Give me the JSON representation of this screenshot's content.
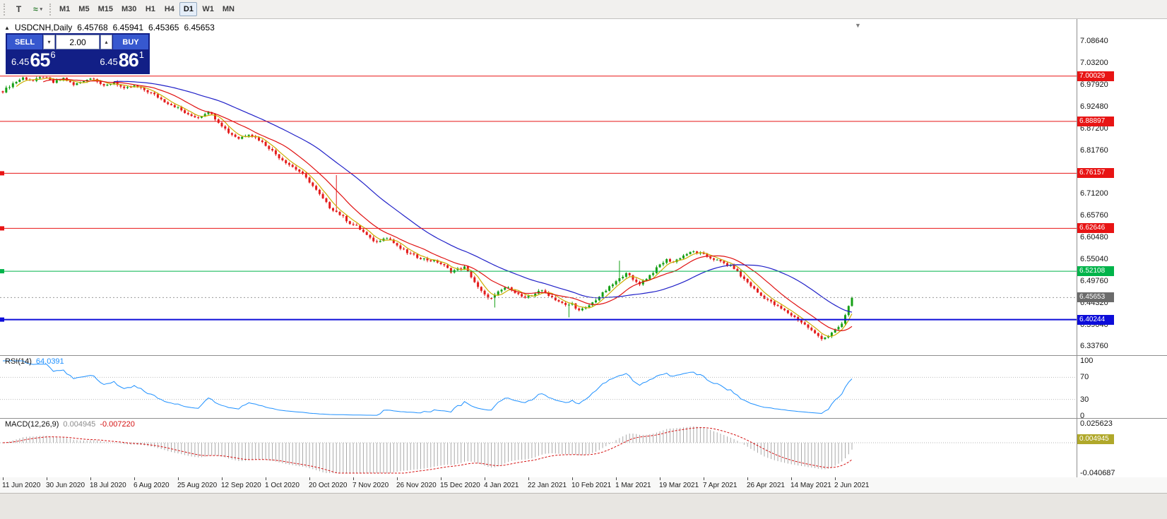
{
  "icons": {
    "shift_marker": "▼",
    "one_click_toggle": "▲",
    "spin_up": "▴",
    "spin_down": "▾"
  },
  "toolbar": {
    "icon_buttons": [
      {
        "name": "text-tool",
        "glyph": "T",
        "color": "#3c3c3c"
      },
      {
        "name": "draw-tool-dropdown",
        "glyph": "≈",
        "caret": "▾",
        "color": "#2e7d32"
      }
    ],
    "timeframes": [
      {
        "label": "M1",
        "active": false
      },
      {
        "label": "M5",
        "active": false
      },
      {
        "label": "M15",
        "active": false
      },
      {
        "label": "M30",
        "active": false
      },
      {
        "label": "H1",
        "active": false
      },
      {
        "label": "H4",
        "active": false
      },
      {
        "label": "D1",
        "active": true
      },
      {
        "label": "W1",
        "active": false
      },
      {
        "label": "MN",
        "active": false
      }
    ]
  },
  "header": {
    "symbol_period": "USDCNH,Daily",
    "open": "6.45768",
    "high": "6.45941",
    "low": "6.45365",
    "close": "6.45653"
  },
  "one_click": {
    "sell_label": "SELL",
    "buy_label": "BUY",
    "volume": "2.00",
    "sell_price": {
      "base": "6.45",
      "big": "65",
      "sup": "6"
    },
    "buy_price": {
      "base": "6.45",
      "big": "86",
      "sup": "1"
    },
    "panel_bg": "#121f86",
    "button_bg": "#3758cf"
  },
  "indicators": {
    "rsi": {
      "name": "RSI(14)",
      "value": "64.0391",
      "levels": [
        100,
        70,
        30,
        0
      ],
      "line_color": "#1e90ff",
      "level_color": "#bcbcbc"
    },
    "macd": {
      "name": "MACD(12,26,9)",
      "value_main": "0.004945",
      "value_signal": "-0.007220",
      "scale_top": "0.025623",
      "scale_bottom": "-0.040687",
      "current_tag": "0.004945",
      "histogram_color": "#a9a9a9",
      "signal_color": "#d41111",
      "tag_bg": "#b0a82a"
    }
  },
  "price_axis": {
    "labels": [
      "7.08640",
      "7.03200",
      "6.97920",
      "6.92480",
      "6.87200",
      "6.81760",
      "6.76320",
      "6.71200",
      "6.65760",
      "6.60480",
      "6.55040",
      "6.49760",
      "6.44320",
      "6.39040",
      "6.33760"
    ],
    "current": {
      "label": "6.45653",
      "price": 6.45653,
      "bg": "#6b6b6b"
    }
  },
  "chart_data": {
    "type": "candlestick",
    "symbol": "USDCNH",
    "period": "Daily",
    "ohlc": [
      6.45768,
      6.45941,
      6.45365,
      6.45653
    ],
    "ylim": [
      6.3376,
      7.0864
    ],
    "num_candles": 253,
    "jitter": 0.003,
    "wick": 0.0045,
    "up_color": "#16a016",
    "down_color": "#e41c1c",
    "rsi_period": 14,
    "macd_periods": [
      12,
      26,
      9
    ],
    "bid_line": {
      "price": 6.45653,
      "color": "#999999"
    },
    "ma_lines": [
      {
        "period": 5,
        "color": "#ccae00"
      },
      {
        "period": 13,
        "color": "#e01010"
      },
      {
        "period": 34,
        "color": "#2020c8"
      }
    ],
    "hlines": [
      {
        "price": 7.00029,
        "label": "7.00029",
        "color": "#e81414",
        "width": 1,
        "handle": false
      },
      {
        "price": 6.88897,
        "label": "6.88897",
        "color": "#e81414",
        "width": 1,
        "handle": false
      },
      {
        "price": 6.76157,
        "label": "6.76157",
        "color": "#e81414",
        "width": 1,
        "handle": true
      },
      {
        "price": 6.62646,
        "label": "6.62646",
        "color": "#e81414",
        "width": 1,
        "handle": true
      },
      {
        "price": 6.52108,
        "label": "6.52108",
        "color": "#00b44a",
        "width": 1,
        "handle": true
      },
      {
        "price": 6.40244,
        "label": "6.40244",
        "color": "#0d0dd9",
        "width": 2,
        "handle": true
      }
    ],
    "anchors": [
      [
        0,
        6.963
      ],
      [
        3,
        6.982
      ],
      [
        6,
        6.996
      ],
      [
        9,
        6.988
      ],
      [
        12,
        6.999
      ],
      [
        15,
        6.984
      ],
      [
        18,
        6.995
      ],
      [
        21,
        6.978
      ],
      [
        24,
        6.99
      ],
      [
        27,
        6.996
      ],
      [
        30,
        6.974
      ],
      [
        33,
        6.986
      ],
      [
        36,
        6.968
      ],
      [
        39,
        6.976
      ],
      [
        42,
        6.966
      ],
      [
        45,
        6.954
      ],
      [
        48,
        6.938
      ],
      [
        52,
        6.922
      ],
      [
        55,
        6.904
      ],
      [
        58,
        6.899
      ],
      [
        61,
        6.914
      ],
      [
        64,
        6.888
      ],
      [
        67,
        6.862
      ],
      [
        70,
        6.847
      ],
      [
        73,
        6.859
      ],
      [
        76,
        6.844
      ],
      [
        79,
        6.824
      ],
      [
        82,
        6.801
      ],
      [
        85,
        6.783
      ],
      [
        88,
        6.766
      ],
      [
        91,
        6.741
      ],
      [
        94,
        6.709
      ],
      [
        97,
        6.678
      ],
      [
        99,
        6.667
      ],
      [
        101,
        6.654
      ],
      [
        103,
        6.639
      ],
      [
        105,
        6.631
      ],
      [
        107,
        6.617
      ],
      [
        109,
        6.601
      ],
      [
        111,
        6.592
      ],
      [
        113,
        6.604
      ],
      [
        115,
        6.599
      ],
      [
        117,
        6.582
      ],
      [
        120,
        6.567
      ],
      [
        123,
        6.556
      ],
      [
        126,
        6.549
      ],
      [
        129,
        6.544
      ],
      [
        131,
        6.534
      ],
      [
        133,
        6.521
      ],
      [
        135,
        6.526
      ],
      [
        137,
        6.531
      ],
      [
        139,
        6.508
      ],
      [
        141,
        6.481
      ],
      [
        143,
        6.462
      ],
      [
        145,
        6.454
      ],
      [
        147,
        6.469
      ],
      [
        149,
        6.481
      ],
      [
        151,
        6.477
      ],
      [
        153,
        6.464
      ],
      [
        155,
        6.454
      ],
      [
        157,
        6.461
      ],
      [
        159,
        6.474
      ],
      [
        161,
        6.469
      ],
      [
        163,
        6.457
      ],
      [
        165,
        6.447
      ],
      [
        167,
        6.437
      ],
      [
        169,
        6.441
      ],
      [
        171,
        6.424
      ],
      [
        173,
        6.431
      ],
      [
        175,
        6.444
      ],
      [
        177,
        6.459
      ],
      [
        179,
        6.474
      ],
      [
        181,
        6.489
      ],
      [
        183,
        6.502
      ],
      [
        185,
        6.519
      ],
      [
        187,
        6.499
      ],
      [
        189,
        6.491
      ],
      [
        191,
        6.504
      ],
      [
        193,
        6.519
      ],
      [
        195,
        6.537
      ],
      [
        197,
        6.549
      ],
      [
        199,
        6.544
      ],
      [
        201,
        6.555
      ],
      [
        203,
        6.564
      ],
      [
        205,
        6.569
      ],
      [
        207,
        6.564
      ],
      [
        209,
        6.557
      ],
      [
        211,
        6.551
      ],
      [
        213,
        6.544
      ],
      [
        215,
        6.537
      ],
      [
        217,
        6.529
      ],
      [
        219,
        6.509
      ],
      [
        221,
        6.494
      ],
      [
        223,
        6.477
      ],
      [
        225,
        6.461
      ],
      [
        227,
        6.451
      ],
      [
        229,
        6.439
      ],
      [
        231,
        6.429
      ],
      [
        233,
        6.419
      ],
      [
        235,
        6.408
      ],
      [
        237,
        6.396
      ],
      [
        239,
        6.383
      ],
      [
        241,
        6.368
      ],
      [
        243,
        6.357
      ],
      [
        245,
        6.362
      ],
      [
        247,
        6.376
      ],
      [
        249,
        6.392
      ],
      [
        250,
        6.412
      ],
      [
        251,
        6.437
      ],
      [
        252,
        6.4565
      ]
    ],
    "spikes": [
      {
        "index": 99,
        "high": 6.757
      },
      {
        "index": 146,
        "low": 6.432
      },
      {
        "index": 168,
        "low": 6.408
      },
      {
        "index": 183,
        "high": 6.547
      }
    ],
    "date_labels": [
      {
        "text": "11 Jun 2020",
        "index": 0
      },
      {
        "text": "30 Jun 2020",
        "index": 13
      },
      {
        "text": "18 Jul 2020",
        "index": 26
      },
      {
        "text": "6 Aug 2020",
        "index": 39
      },
      {
        "text": "25 Aug 2020",
        "index": 52
      },
      {
        "text": "12 Sep 2020",
        "index": 65
      },
      {
        "text": "1 Oct 2020",
        "index": 78
      },
      {
        "text": "20 Oct 2020",
        "index": 91
      },
      {
        "text": "7 Nov 2020",
        "index": 104
      },
      {
        "text": "26 Nov 2020",
        "index": 117
      },
      {
        "text": "15 Dec 2020",
        "index": 130
      },
      {
        "text": "4 Jan 2021",
        "index": 143
      },
      {
        "text": "22 Jan 2021",
        "index": 156
      },
      {
        "text": "10 Feb 2021",
        "index": 169
      },
      {
        "text": "1 Mar 2021",
        "index": 182
      },
      {
        "text": "19 Mar 2021",
        "index": 195
      },
      {
        "text": "7 Apr 2021",
        "index": 208
      },
      {
        "text": "26 Apr 2021",
        "index": 221
      },
      {
        "text": "14 May 2021",
        "index": 234
      },
      {
        "text": "2 Jun 2021",
        "index": 247
      }
    ]
  }
}
